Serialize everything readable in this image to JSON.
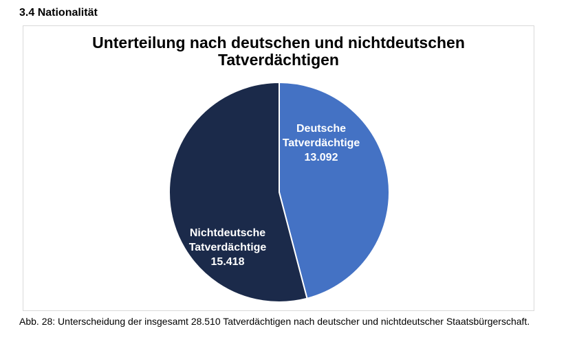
{
  "section": {
    "heading": "3.4 Nationalität"
  },
  "chart_data": {
    "type": "pie",
    "title_line1": "Unterteilung nach deutschen und nichtdeutschen",
    "title_line2": "Tatverdächtigen",
    "slices": [
      {
        "name_line1": "Deutsche",
        "name_line2": "Tatverdächtige",
        "value": 13092,
        "value_label": "13.092",
        "color": "#4472c4"
      },
      {
        "name_line1": "Nichtdeutsche",
        "name_line2": "Tatverdächtige",
        "value": 15418,
        "value_label": "15.418",
        "color": "#1b2a4a"
      }
    ],
    "total": 28510,
    "legend": "none"
  },
  "caption": {
    "text": "Abb. 28: Unterscheidung der insgesamt 28.510 Tatverdächtigen nach deutscher und nichtdeutscher Staatsbürgerschaft."
  }
}
